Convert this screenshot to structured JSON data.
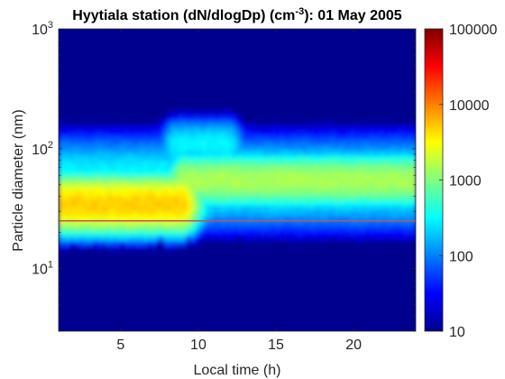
{
  "chart_data": {
    "type": "heatmap",
    "title": {
      "prefix": "Hyytiala station (dN/dlogDp) (cm",
      "superscript": "-3",
      "suffix": "): 01 May 2005"
    },
    "xlabel": "Local time (h)",
    "ylabel": "Particle diameter (nm)",
    "x_range": [
      1,
      24
    ],
    "y_range": [
      3,
      1000
    ],
    "y_scale": "log",
    "x_ticks": [
      {
        "value": 5,
        "label": "5"
      },
      {
        "value": 10,
        "label": "10"
      },
      {
        "value": 15,
        "label": "15"
      },
      {
        "value": 20,
        "label": "20"
      }
    ],
    "y_ticks": [
      {
        "value": 10,
        "base": "10",
        "exp": "1"
      },
      {
        "value": 100,
        "base": "10",
        "exp": "2"
      },
      {
        "value": 1000,
        "base": "10",
        "exp": "3"
      }
    ],
    "colorbar": {
      "scale": "log",
      "range": [
        10,
        100000
      ],
      "colormap": "jet",
      "ticks": [
        {
          "value": 10,
          "label": "10"
        },
        {
          "value": 100,
          "label": "100"
        },
        {
          "value": 1000,
          "label": "1000"
        },
        {
          "value": 10000,
          "label": "10000"
        },
        {
          "value": 100000,
          "label": "100000"
        }
      ]
    },
    "reference_line": {
      "diameter_nm": 25,
      "color": "#c8505a"
    },
    "background_color": "#00008f",
    "mode_structure": [
      {
        "time_range": [
          1,
          9
        ],
        "peak_diameter_nm": 35,
        "peak_concentration": 5000
      },
      {
        "time_range": [
          9,
          24
        ],
        "peak_diameter_nm": 55,
        "peak_concentration": 1500
      },
      {
        "time_range": [
          8.5,
          12
        ],
        "peak_diameter_nm": 110,
        "peak_concentration": 300
      }
    ]
  }
}
